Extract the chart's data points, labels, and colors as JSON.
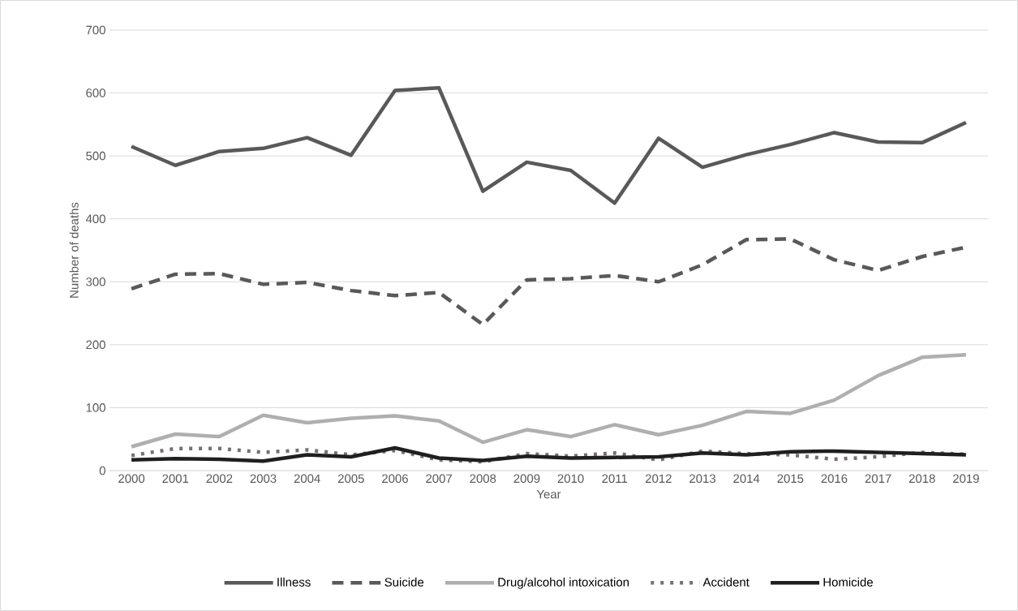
{
  "chart_data": {
    "type": "line",
    "xlabel": "Year",
    "ylabel": "Number of deaths",
    "categories": [
      "2000",
      "2001",
      "2002",
      "2003",
      "2004",
      "2005",
      "2006",
      "2007",
      "2008",
      "2009",
      "2010",
      "2011",
      "2012",
      "2013",
      "2014",
      "2015",
      "2016",
      "2017",
      "2018",
      "2019"
    ],
    "ylim": [
      0,
      700
    ],
    "yticks": [
      0,
      100,
      200,
      300,
      400,
      500,
      600,
      700
    ],
    "grid": "y",
    "legend": "bottom",
    "marker": "none",
    "series": [
      {
        "name": "Illness",
        "color": "#595959",
        "line_style": "solid",
        "values": [
          515,
          485,
          507,
          512,
          529,
          501,
          604,
          608,
          444,
          490,
          477,
          425,
          528,
          482,
          502,
          518,
          537,
          522,
          521,
          553
        ]
      },
      {
        "name": "Suicide",
        "color": "#595959",
        "line_style": "dashed",
        "values": [
          289,
          312,
          313,
          296,
          299,
          286,
          278,
          283,
          232,
          303,
          305,
          310,
          300,
          327,
          367,
          368,
          335,
          318,
          340,
          355
        ]
      },
      {
        "name": "Drug/alcohol intoxication",
        "color": "#afafaf",
        "line_style": "solid",
        "values": [
          38,
          58,
          54,
          88,
          76,
          83,
          87,
          79,
          45,
          65,
          54,
          73,
          57,
          72,
          94,
          91,
          112,
          151,
          180,
          184
        ]
      },
      {
        "name": "Accident",
        "color": "#767171",
        "line_style": "dotted",
        "values": [
          24,
          35,
          35,
          29,
          33,
          25,
          32,
          17,
          14,
          27,
          23,
          28,
          17,
          31,
          27,
          25,
          18,
          22,
          29,
          26
        ]
      },
      {
        "name": "Homicide",
        "color": "#1f1f1f",
        "line_style": "solid",
        "values": [
          17,
          19,
          18,
          15,
          25,
          22,
          36,
          20,
          16,
          23,
          20,
          21,
          22,
          28,
          25,
          30,
          31,
          29,
          27,
          25
        ]
      }
    ]
  }
}
